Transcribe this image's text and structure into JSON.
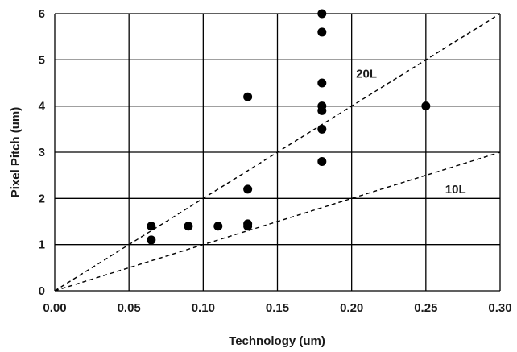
{
  "chart_data": {
    "type": "scatter",
    "title": "",
    "xlabel": "Technology (um)",
    "ylabel": "Pixel Pitch (um)",
    "xlim": [
      0,
      0.3
    ],
    "ylim": [
      0,
      6
    ],
    "xticks": [
      0,
      0.05,
      0.1,
      0.15,
      0.2,
      0.25,
      0.3
    ],
    "xtick_labels": [
      "0.00",
      "0.05",
      "0.10",
      "0.15",
      "0.20",
      "0.25",
      "0.30"
    ],
    "yticks": [
      0,
      1,
      2,
      3,
      4,
      5,
      6
    ],
    "ytick_labels": [
      "0",
      "1",
      "2",
      "3",
      "4",
      "5",
      "6"
    ],
    "grid": true,
    "points": [
      {
        "x": 0.065,
        "y": 1.4
      },
      {
        "x": 0.065,
        "y": 1.1
      },
      {
        "x": 0.09,
        "y": 1.4
      },
      {
        "x": 0.11,
        "y": 1.4
      },
      {
        "x": 0.13,
        "y": 4.2
      },
      {
        "x": 0.13,
        "y": 2.2
      },
      {
        "x": 0.13,
        "y": 1.45
      },
      {
        "x": 0.13,
        "y": 1.4
      },
      {
        "x": 0.18,
        "y": 6.0
      },
      {
        "x": 0.18,
        "y": 5.6
      },
      {
        "x": 0.18,
        "y": 4.5
      },
      {
        "x": 0.18,
        "y": 4.0
      },
      {
        "x": 0.18,
        "y": 3.9
      },
      {
        "x": 0.18,
        "y": 3.5
      },
      {
        "x": 0.18,
        "y": 2.8
      },
      {
        "x": 0.25,
        "y": 4.0
      }
    ],
    "reference_lines": [
      {
        "name": "20L",
        "slope": 20,
        "style": "dashed",
        "label_at": {
          "x": 0.21,
          "y": 4.7
        }
      },
      {
        "name": "10L",
        "slope": 10,
        "style": "dashed",
        "label_at": {
          "x": 0.27,
          "y": 2.2
        }
      }
    ],
    "colors": {
      "points": "#000000",
      "grid": "#000000",
      "lines": "#000000"
    }
  }
}
